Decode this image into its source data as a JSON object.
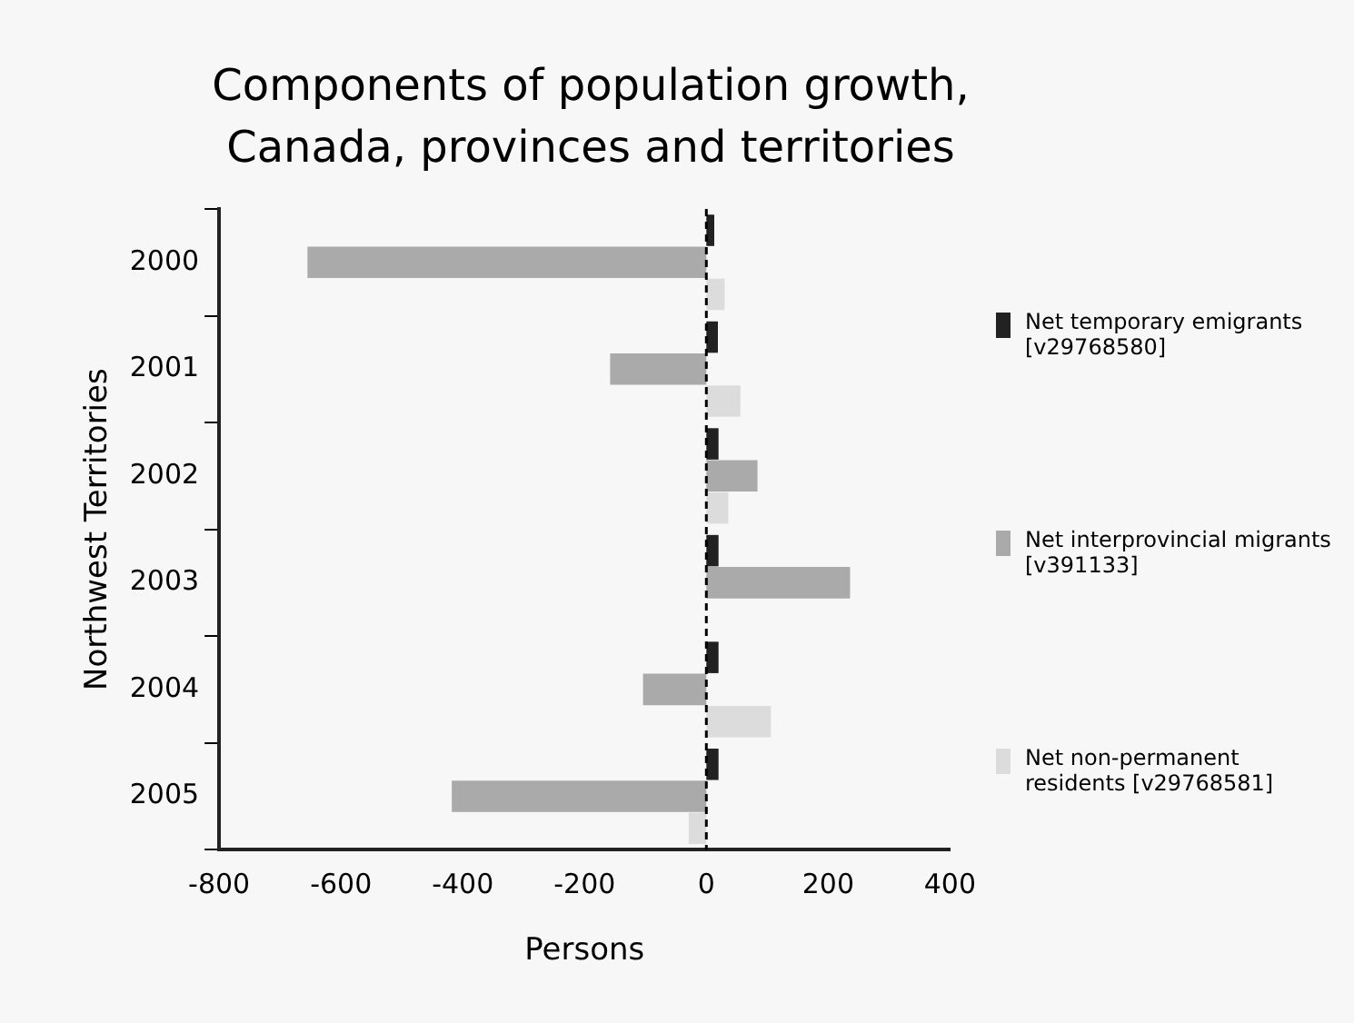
{
  "chart_data": {
    "type": "bar",
    "orientation": "horizontal",
    "title": "Components of population growth, Canada, provinces and territories",
    "xlabel": "Persons",
    "ylabel": "Northwest Territories",
    "categories": [
      "2000",
      "2001",
      "2002",
      "2003",
      "2004",
      "2005"
    ],
    "series": [
      {
        "name": "Net temporary emigrants [v29768580]",
        "color": "#222222",
        "values": [
          13,
          19,
          20,
          20,
          20,
          20
        ]
      },
      {
        "name": "Net interprovincial migrants [v391133]",
        "color": "#aaaaaa",
        "values": [
          -655,
          -158,
          84,
          236,
          -104,
          -418
        ]
      },
      {
        "name": "Net non-permanent residents [v29768581]",
        "color": "#dcdcdc",
        "values": [
          30,
          56,
          36,
          0,
          106,
          -29
        ]
      }
    ],
    "xlim": [
      -800,
      400
    ],
    "xticks": [
      -800,
      -600,
      -400,
      -200,
      0,
      200,
      400
    ],
    "ref_lines": [
      {
        "axis": "x",
        "value": 0,
        "line_style": "dashed",
        "color": "#000000"
      }
    ],
    "grid": false,
    "legend": "right"
  }
}
